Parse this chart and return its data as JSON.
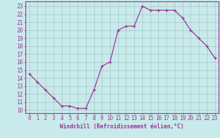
{
  "hours": [
    0,
    1,
    2,
    3,
    4,
    5,
    6,
    7,
    8,
    9,
    10,
    11,
    12,
    13,
    14,
    15,
    16,
    17,
    18,
    19,
    20,
    21,
    22,
    23
  ],
  "values": [
    14.5,
    13.5,
    12.5,
    11.5,
    10.5,
    10.5,
    10.2,
    10.2,
    12.5,
    15.5,
    16.0,
    20.0,
    20.5,
    20.5,
    23.0,
    22.5,
    22.5,
    22.5,
    22.5,
    21.5,
    20.0,
    19.0,
    18.0,
    16.5
  ],
  "line_color": "#993399",
  "marker": "+",
  "bg_color": "#c8eaea",
  "grid_color": "#aacccc",
  "xlabel": "Windchill (Refroidissement éolien,°C)",
  "ytick_labels": [
    "10",
    "11",
    "12",
    "13",
    "14",
    "15",
    "16",
    "17",
    "18",
    "19",
    "20",
    "21",
    "22",
    "23"
  ],
  "ytick_vals": [
    10,
    11,
    12,
    13,
    14,
    15,
    16,
    17,
    18,
    19,
    20,
    21,
    22,
    23
  ],
  "xlim": [
    -0.5,
    23.5
  ],
  "ylim": [
    9.6,
    23.6
  ],
  "xlabel_fontsize": 5.8,
  "tick_fontsize": 5.5,
  "line_width": 0.9,
  "marker_size": 3,
  "spine_color": "#993399"
}
